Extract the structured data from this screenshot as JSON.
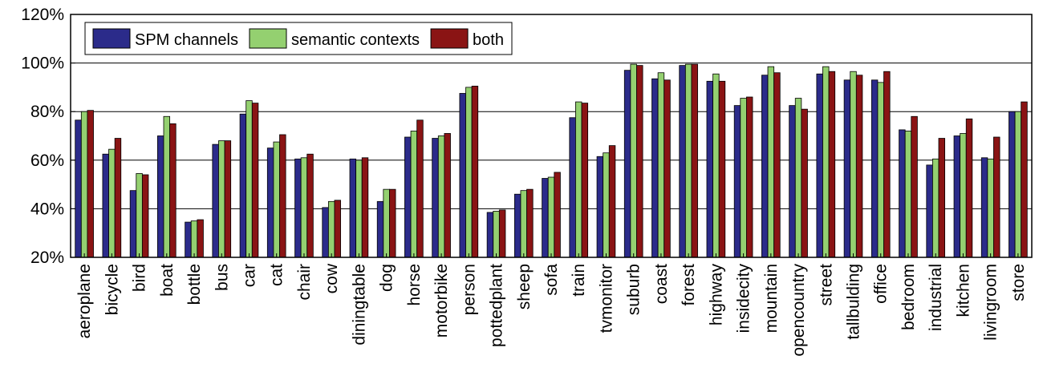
{
  "chart_data": {
    "type": "bar",
    "ylim": [
      20,
      120
    ],
    "yticks": [
      20,
      40,
      60,
      80,
      100,
      120
    ],
    "ytick_suffix": "%",
    "grid": true,
    "legend_position": "top-left",
    "categories": [
      "aeroplane",
      "bicycle",
      "bird",
      "boat",
      "bottle",
      "bus",
      "car",
      "cat",
      "chair",
      "cow",
      "diningtable",
      "dog",
      "horse",
      "motorbike",
      "person",
      "pottedplant",
      "sheep",
      "sofa",
      "train",
      "tvmonitor",
      "suburb",
      "coast",
      "forest",
      "highway",
      "insidecity",
      "mountain",
      "opencountry",
      "street",
      "tallbulding",
      "office",
      "bedroom",
      "industrial",
      "kitchen",
      "livingroom",
      "store"
    ],
    "series": [
      {
        "name": "SPM channels",
        "color": "#2b2b8a",
        "values": [
          76.5,
          62.5,
          47.5,
          70,
          34.5,
          66.5,
          79,
          65,
          60.5,
          40.5,
          60.5,
          43,
          69.5,
          69,
          87.5,
          38.5,
          46,
          52.5,
          77.5,
          61.5,
          97,
          93.5,
          99,
          92.5,
          82.5,
          95,
          82.5,
          95.5,
          93,
          93,
          72.5,
          58,
          70,
          61,
          80
        ]
      },
      {
        "name": "semantic contexts",
        "color": "#94d070",
        "values": [
          80,
          64.5,
          54.5,
          78,
          35,
          68,
          84.5,
          67.5,
          61,
          43,
          60,
          48,
          72,
          70,
          90,
          39,
          47.5,
          53,
          84,
          63,
          99.5,
          96,
          99.5,
          95.5,
          85.5,
          98.5,
          85.5,
          98.5,
          96.5,
          92,
          72,
          60.5,
          71,
          60.5,
          80
        ]
      },
      {
        "name": "both",
        "color": "#8a1414",
        "values": [
          80.5,
          69,
          54,
          75,
          35.5,
          68,
          83.5,
          70.5,
          62.5,
          43.5,
          61,
          48,
          76.5,
          71,
          90.5,
          39.5,
          48,
          55,
          83.5,
          66,
          99,
          93,
          99.5,
          92.5,
          86,
          96,
          81,
          96.5,
          95,
          96.5,
          78,
          69,
          77,
          69.5,
          84
        ]
      }
    ]
  }
}
